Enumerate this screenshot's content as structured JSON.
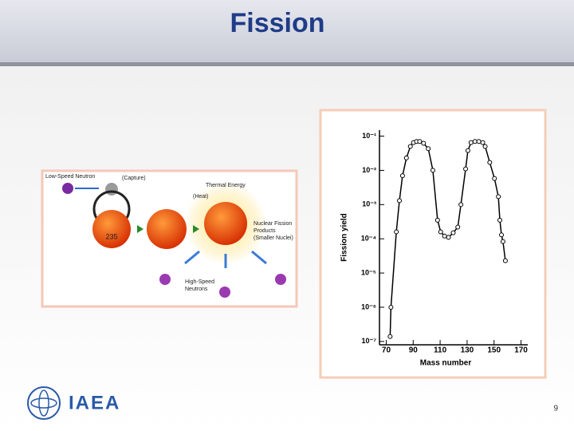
{
  "header": {
    "title": "Fission"
  },
  "diagram": {
    "neutron_label": "Low-Speed Neutron",
    "capture_label": "(Capture)",
    "energy_label": "Thermal Energy",
    "heat_label": "(Heat)",
    "nucleus_label": "235",
    "products_label": [
      "Nuclear Fission",
      "Products",
      "(Smaller Nuclei)"
    ],
    "fast_label": [
      "High-Speed",
      "Neutrons"
    ]
  },
  "chart_data": {
    "type": "line",
    "x_label": "Mass number",
    "y_label": "Fission yield",
    "log_y": true,
    "markers": true,
    "color": "#000000",
    "xlim": [
      65,
      175
    ],
    "xticks": [
      70,
      90,
      110,
      130,
      150,
      170
    ],
    "ylim": [
      8e-08,
      0.15
    ],
    "yticks": [
      {
        "value": 1e-07,
        "label": "10⁻⁷"
      },
      {
        "value": 1e-06,
        "label": "10⁻⁶"
      },
      {
        "value": 1e-05,
        "label": "10⁻⁵"
      },
      {
        "value": 0.0001,
        "label": "10⁻⁴"
      },
      {
        "value": 0.001,
        "label": "10⁻³"
      },
      {
        "value": 0.01,
        "label": "10⁻²"
      },
      {
        "value": 0.1,
        "label": "10⁻¹"
      }
    ],
    "x": [
      72.9,
      73.5,
      77.5,
      79.8,
      82.1,
      85,
      87.9,
      90.2,
      92.5,
      94.8,
      97.7,
      101.2,
      104.6,
      108.1,
      110.4,
      113.3,
      116.2,
      119.7,
      123.1,
      125.4,
      128.9,
      130.6,
      132.9,
      135.8,
      138.7,
      141.6,
      143.4,
      146.8,
      150.3,
      153.2,
      154.3,
      155.5,
      156.6,
      158.4
    ],
    "values": [
      1.4e-07,
      1e-06,
      0.00016,
      0.0013,
      0.007,
      0.023,
      0.05,
      0.065,
      0.07,
      0.07,
      0.062,
      0.043,
      0.01,
      0.00035,
      0.00016,
      0.00012,
      0.00011,
      0.00015,
      0.00022,
      0.001,
      0.011,
      0.038,
      0.065,
      0.07,
      0.07,
      0.065,
      0.05,
      0.017,
      0.0058,
      0.0017,
      0.00035,
      0.00013,
      8.3e-05,
      2.3e-05
    ]
  },
  "footer": {
    "logo": "IAEA",
    "page_number": "9"
  }
}
